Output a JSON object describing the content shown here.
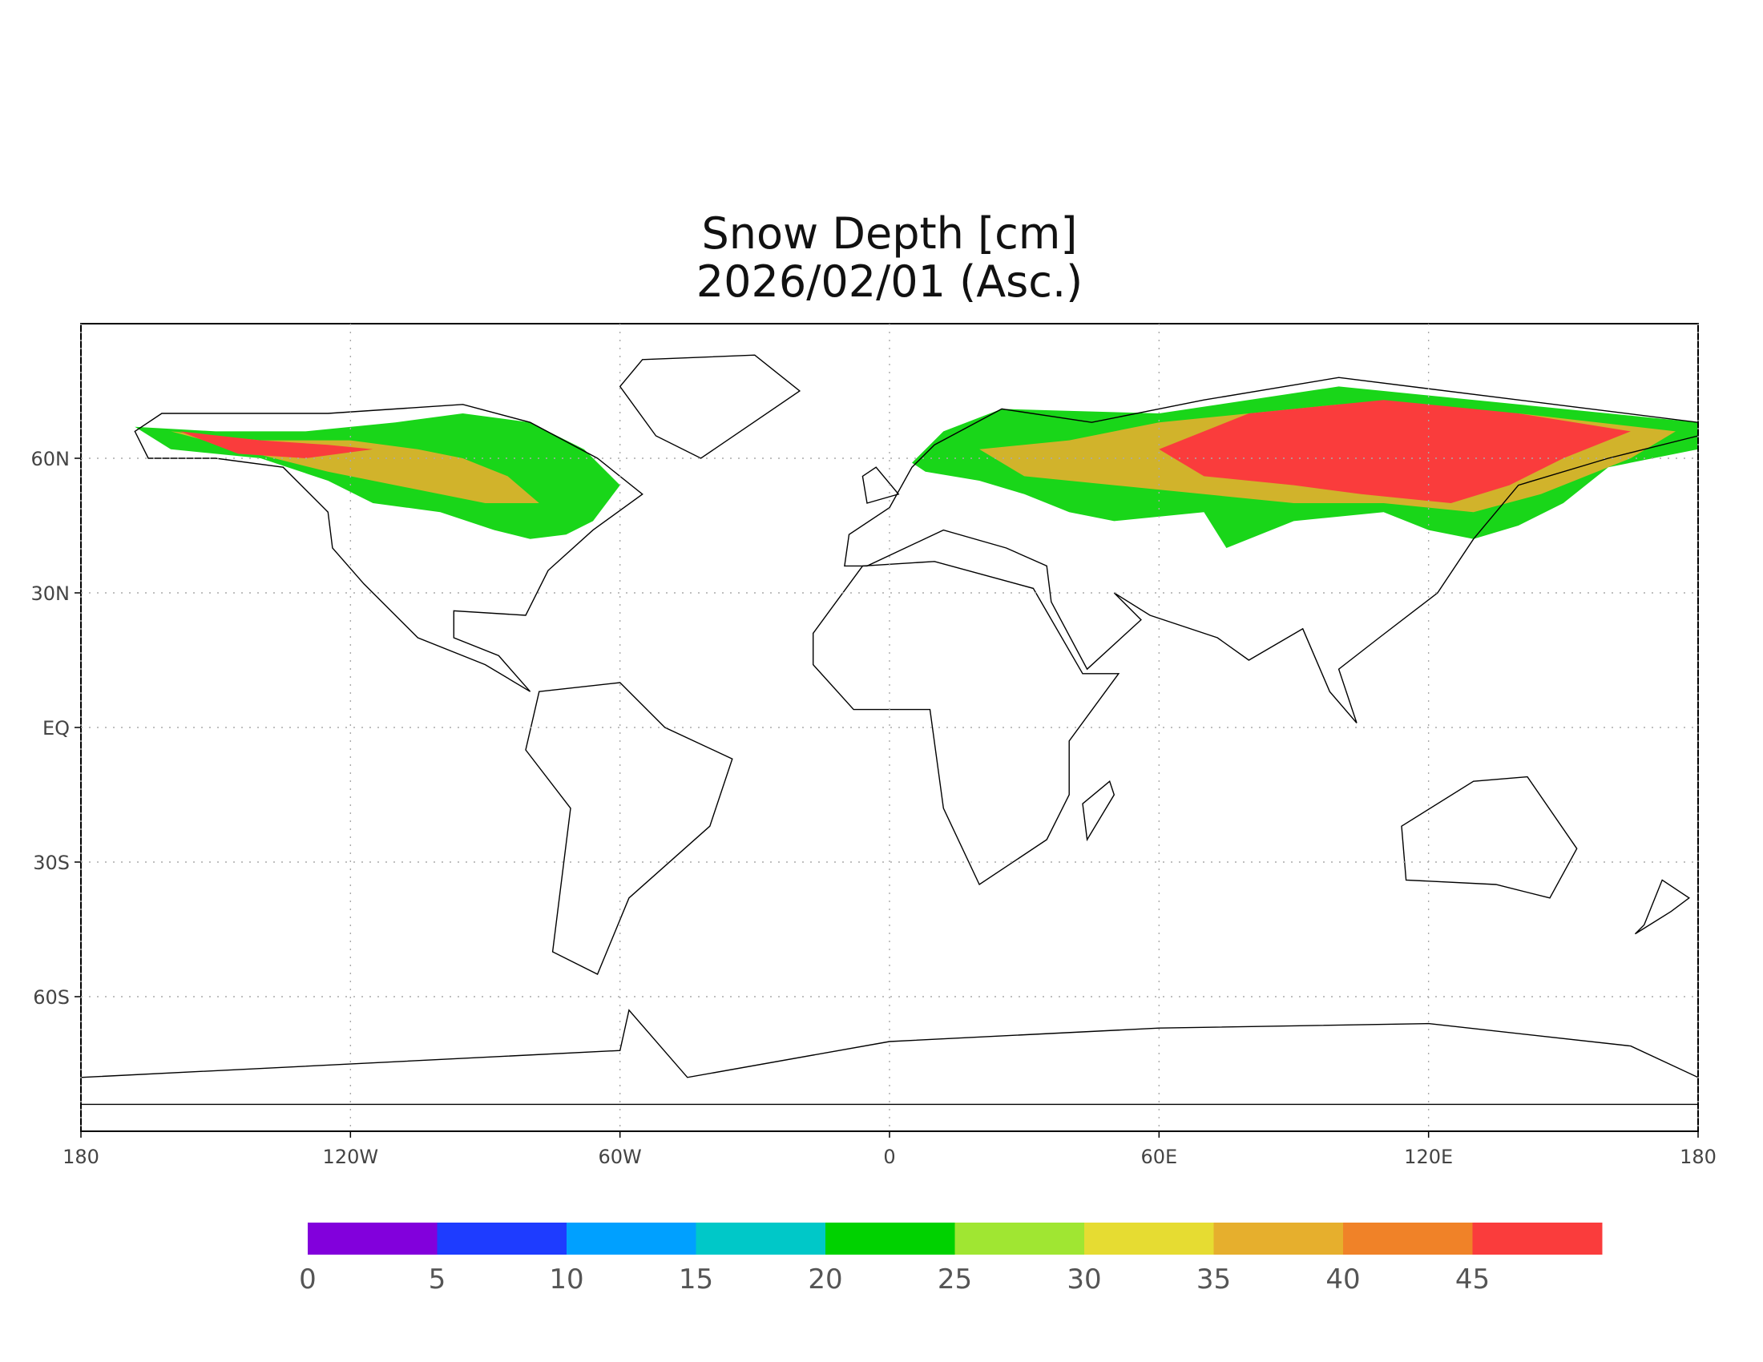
{
  "map": {
    "title": "Snow Depth [cm]",
    "subtitle": "2026/02/01 (Asc.)",
    "xlim": [
      -180,
      180
    ],
    "ylim": [
      -90,
      90
    ],
    "xticks": [
      {
        "value": -180,
        "label": "180"
      },
      {
        "value": -120,
        "label": "120W"
      },
      {
        "value": -60,
        "label": "60W"
      },
      0,
      {
        "value": 60,
        "label": "60E"
      },
      {
        "value": 120,
        "label": "120E"
      },
      {
        "value": 180,
        "label": "180"
      }
    ],
    "yticks": [
      {
        "value": 60,
        "label": "60N"
      },
      {
        "value": 30,
        "label": "30N"
      },
      {
        "value": 0,
        "label": "EQ"
      },
      {
        "value": -30,
        "label": "30S"
      },
      {
        "value": -60,
        "label": "60S"
      }
    ],
    "grid": true,
    "colorbar": {
      "levels": [
        0,
        5,
        10,
        15,
        20,
        25,
        30,
        35,
        40,
        45
      ],
      "colors": [
        "#8200dc",
        "#1e3cff",
        "#00a0ff",
        "#00c8c8",
        "#00d200",
        "#a0e632",
        "#e6dc32",
        "#e6af2d",
        "#f08228",
        "#fa3c3c"
      ]
    }
  }
}
